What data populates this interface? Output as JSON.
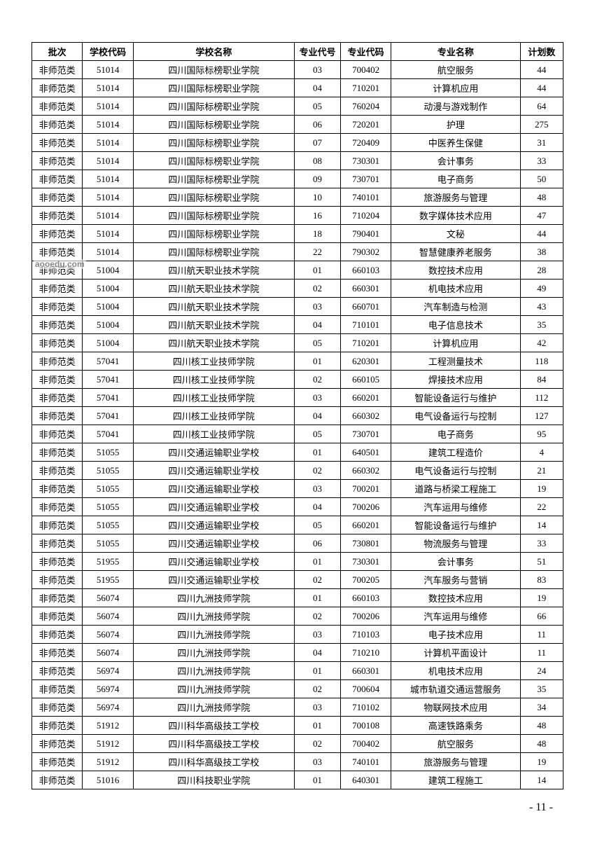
{
  "watermark": "aooedu.com",
  "page_number": "- 11 -",
  "table": {
    "columns": [
      "批次",
      "学校代码",
      "学校名称",
      "专业代号",
      "专业代码",
      "专业名称",
      "计划数"
    ],
    "rows": [
      [
        "非师范类",
        "51014",
        "四川国际标榜职业学院",
        "03",
        "700402",
        "航空服务",
        "44"
      ],
      [
        "非师范类",
        "51014",
        "四川国际标榜职业学院",
        "04",
        "710201",
        "计算机应用",
        "44"
      ],
      [
        "非师范类",
        "51014",
        "四川国际标榜职业学院",
        "05",
        "760204",
        "动漫与游戏制作",
        "64"
      ],
      [
        "非师范类",
        "51014",
        "四川国际标榜职业学院",
        "06",
        "720201",
        "护理",
        "275"
      ],
      [
        "非师范类",
        "51014",
        "四川国际标榜职业学院",
        "07",
        "720409",
        "中医养生保健",
        "31"
      ],
      [
        "非师范类",
        "51014",
        "四川国际标榜职业学院",
        "08",
        "730301",
        "会计事务",
        "33"
      ],
      [
        "非师范类",
        "51014",
        "四川国际标榜职业学院",
        "09",
        "730701",
        "电子商务",
        "50"
      ],
      [
        "非师范类",
        "51014",
        "四川国际标榜职业学院",
        "10",
        "740101",
        "旅游服务与管理",
        "48"
      ],
      [
        "非师范类",
        "51014",
        "四川国际标榜职业学院",
        "16",
        "710204",
        "数字媒体技术应用",
        "47"
      ],
      [
        "非师范类",
        "51014",
        "四川国际标榜职业学院",
        "18",
        "790401",
        "文秘",
        "44"
      ],
      [
        "非师范类",
        "51014",
        "四川国际标榜职业学院",
        "22",
        "790302",
        "智慧健康养老服务",
        "38"
      ],
      [
        "非师范类",
        "51004",
        "四川航天职业技术学院",
        "01",
        "660103",
        "数控技术应用",
        "28"
      ],
      [
        "非师范类",
        "51004",
        "四川航天职业技术学院",
        "02",
        "660301",
        "机电技术应用",
        "49"
      ],
      [
        "非师范类",
        "51004",
        "四川航天职业技术学院",
        "03",
        "660701",
        "汽车制造与检测",
        "43"
      ],
      [
        "非师范类",
        "51004",
        "四川航天职业技术学院",
        "04",
        "710101",
        "电子信息技术",
        "35"
      ],
      [
        "非师范类",
        "51004",
        "四川航天职业技术学院",
        "05",
        "710201",
        "计算机应用",
        "42"
      ],
      [
        "非师范类",
        "57041",
        "四川核工业技师学院",
        "01",
        "620301",
        "工程测量技术",
        "118"
      ],
      [
        "非师范类",
        "57041",
        "四川核工业技师学院",
        "02",
        "660105",
        "焊接技术应用",
        "84"
      ],
      [
        "非师范类",
        "57041",
        "四川核工业技师学院",
        "03",
        "660201",
        "智能设备运行与维护",
        "112"
      ],
      [
        "非师范类",
        "57041",
        "四川核工业技师学院",
        "04",
        "660302",
        "电气设备运行与控制",
        "127"
      ],
      [
        "非师范类",
        "57041",
        "四川核工业技师学院",
        "05",
        "730701",
        "电子商务",
        "95"
      ],
      [
        "非师范类",
        "51055",
        "四川交通运输职业学校",
        "01",
        "640501",
        "建筑工程造价",
        "4"
      ],
      [
        "非师范类",
        "51055",
        "四川交通运输职业学校",
        "02",
        "660302",
        "电气设备运行与控制",
        "21"
      ],
      [
        "非师范类",
        "51055",
        "四川交通运输职业学校",
        "03",
        "700201",
        "道路与桥梁工程施工",
        "19"
      ],
      [
        "非师范类",
        "51055",
        "四川交通运输职业学校",
        "04",
        "700206",
        "汽车运用与维修",
        "22"
      ],
      [
        "非师范类",
        "51055",
        "四川交通运输职业学校",
        "05",
        "660201",
        "智能设备运行与维护",
        "14"
      ],
      [
        "非师范类",
        "51055",
        "四川交通运输职业学校",
        "06",
        "730801",
        "物流服务与管理",
        "33"
      ],
      [
        "非师范类",
        "51955",
        "四川交通运输职业学校",
        "01",
        "730301",
        "会计事务",
        "51"
      ],
      [
        "非师范类",
        "51955",
        "四川交通运输职业学校",
        "02",
        "700205",
        "汽车服务与营销",
        "83"
      ],
      [
        "非师范类",
        "56074",
        "四川九洲技师学院",
        "01",
        "660103",
        "数控技术应用",
        "19"
      ],
      [
        "非师范类",
        "56074",
        "四川九洲技师学院",
        "02",
        "700206",
        "汽车运用与维修",
        "66"
      ],
      [
        "非师范类",
        "56074",
        "四川九洲技师学院",
        "03",
        "710103",
        "电子技术应用",
        "11"
      ],
      [
        "非师范类",
        "56074",
        "四川九洲技师学院",
        "04",
        "710210",
        "计算机平面设计",
        "11"
      ],
      [
        "非师范类",
        "56974",
        "四川九洲技师学院",
        "01",
        "660301",
        "机电技术应用",
        "24"
      ],
      [
        "非师范类",
        "56974",
        "四川九洲技师学院",
        "02",
        "700604",
        "城市轨道交通运营服务",
        "35"
      ],
      [
        "非师范类",
        "56974",
        "四川九洲技师学院",
        "03",
        "710102",
        "物联网技术应用",
        "34"
      ],
      [
        "非师范类",
        "51912",
        "四川科华高级技工学校",
        "01",
        "700108",
        "高速铁路乘务",
        "48"
      ],
      [
        "非师范类",
        "51912",
        "四川科华高级技工学校",
        "02",
        "700402",
        "航空服务",
        "48"
      ],
      [
        "非师范类",
        "51912",
        "四川科华高级技工学校",
        "03",
        "740101",
        "旅游服务与管理",
        "19"
      ],
      [
        "非师范类",
        "51016",
        "四川科技职业学院",
        "01",
        "640301",
        "建筑工程施工",
        "14"
      ]
    ]
  }
}
